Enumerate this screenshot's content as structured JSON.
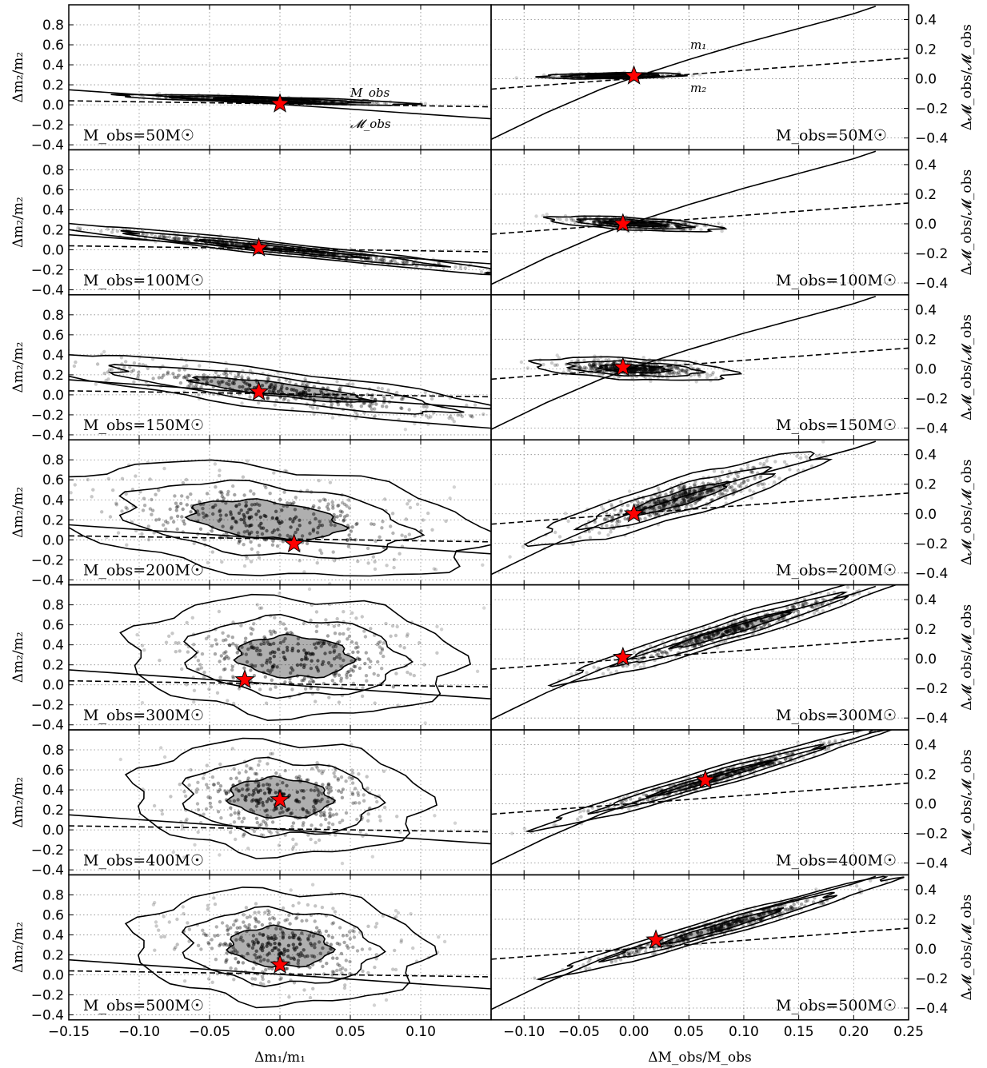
{
  "figure": {
    "left_xlabel": "Δm₁/m₁",
    "right_xlabel": "ΔM_obs/M_obs",
    "left_ylabel": "Δm₂/m₂",
    "right_ylabel": "Δ𝓜_obs/𝓜_obs"
  },
  "colors": {
    "star": "#ff0000",
    "lines": "#000000",
    "grid": "#888888",
    "density_dark": "#1a1a1a",
    "density_light": "#dddddd"
  },
  "annotations": {
    "left_top": [
      "M_obs",
      "𝓜_obs"
    ],
    "right_top": [
      "m₁",
      "m₂"
    ]
  },
  "chart_data": [
    {
      "type": "scatter",
      "side": "left",
      "panel_label": "M_obs=50M☉",
      "xlim": [
        -0.15,
        0.15
      ],
      "ylim": [
        -0.45,
        1.0
      ],
      "xticks": [
        -0.15,
        -0.1,
        -0.05,
        0.0,
        0.05,
        0.1
      ],
      "yticks": [
        -0.4,
        -0.2,
        0.0,
        0.2,
        0.4,
        0.6,
        0.8
      ],
      "true_value": {
        "x": 0.0,
        "y": 0.01
      },
      "cloud": {
        "center": [
          -0.01,
          0.05
        ],
        "sx": 0.04,
        "sy": 0.02,
        "corr": -0.8
      },
      "lines": [
        {
          "style": "solid",
          "x": [
            -0.15,
            0.15
          ],
          "y": [
            0.15,
            -0.14
          ]
        },
        {
          "style": "dashed",
          "x": [
            -0.15,
            0.15
          ],
          "y": [
            0.04,
            -0.02
          ]
        }
      ]
    },
    {
      "type": "scatter",
      "side": "right",
      "panel_label": "M_obs=50M☉",
      "xlim": [
        -0.13,
        0.25
      ],
      "ylim": [
        -0.48,
        0.5
      ],
      "xticks": [
        -0.1,
        -0.05,
        0.0,
        0.05,
        0.1,
        0.15,
        0.2,
        0.25
      ],
      "yticks": [
        -0.4,
        -0.2,
        0.0,
        0.2,
        0.4
      ],
      "true_value": {
        "x": 0.0,
        "y": 0.02
      },
      "cloud": {
        "center": [
          -0.02,
          0.02
        ],
        "sx": 0.025,
        "sy": 0.008,
        "corr": 0.3
      },
      "lines": [
        {
          "style": "solid",
          "x": [
            -0.13,
            -0.08,
            -0.03,
            0.0,
            0.05,
            0.1,
            0.15,
            0.2,
            0.22
          ],
          "y": [
            -0.41,
            -0.23,
            -0.07,
            0.01,
            0.13,
            0.24,
            0.34,
            0.44,
            0.49
          ]
        },
        {
          "style": "dashed",
          "x": [
            -0.13,
            0.25
          ],
          "y": [
            -0.07,
            0.14
          ]
        }
      ]
    },
    {
      "type": "scatter",
      "side": "left",
      "panel_label": "M_obs=100M☉",
      "xlim": [
        -0.15,
        0.15
      ],
      "ylim": [
        -0.45,
        1.0
      ],
      "xticks": [
        -0.15,
        -0.1,
        -0.05,
        0.0,
        0.05,
        0.1
      ],
      "yticks": [
        -0.4,
        -0.2,
        0.0,
        0.2,
        0.4,
        0.6,
        0.8
      ],
      "true_value": {
        "x": -0.015,
        "y": 0.02
      },
      "cloud": {
        "center": [
          0.0,
          0.01
        ],
        "sx": 0.065,
        "sy": 0.1,
        "corr": -0.97
      },
      "lines": [
        {
          "style": "solid",
          "x": [
            -0.15,
            0.15
          ],
          "y": [
            0.15,
            -0.14
          ]
        },
        {
          "style": "dashed",
          "x": [
            -0.15,
            0.15
          ],
          "y": [
            0.04,
            -0.02
          ]
        }
      ]
    },
    {
      "type": "scatter",
      "side": "right",
      "panel_label": "M_obs=100M☉",
      "xlim": [
        -0.13,
        0.25
      ],
      "ylim": [
        -0.48,
        0.5
      ],
      "xticks": [
        -0.1,
        -0.05,
        0.0,
        0.05,
        0.1,
        0.15,
        0.2,
        0.25
      ],
      "yticks": [
        -0.4,
        -0.2,
        0.0,
        0.2,
        0.4
      ],
      "true_value": {
        "x": -0.01,
        "y": 0.0
      },
      "cloud": {
        "center": [
          0.0,
          0.0
        ],
        "sx": 0.03,
        "sy": 0.02,
        "corr": -0.6
      },
      "lines": [
        {
          "style": "solid",
          "x": [
            -0.13,
            -0.08,
            -0.03,
            0.0,
            0.05,
            0.1,
            0.15,
            0.2,
            0.22
          ],
          "y": [
            -0.41,
            -0.23,
            -0.07,
            0.01,
            0.13,
            0.24,
            0.34,
            0.44,
            0.49
          ]
        },
        {
          "style": "dashed",
          "x": [
            -0.13,
            0.25
          ],
          "y": [
            -0.07,
            0.14
          ]
        }
      ]
    },
    {
      "type": "scatter",
      "side": "left",
      "panel_label": "M_obs=150M☉",
      "xlim": [
        -0.15,
        0.15
      ],
      "ylim": [
        -0.45,
        1.0
      ],
      "xticks": [
        -0.15,
        -0.1,
        -0.05,
        0.0,
        0.05,
        0.1
      ],
      "yticks": [
        -0.4,
        -0.2,
        0.0,
        0.2,
        0.4,
        0.6,
        0.8
      ],
      "true_value": {
        "x": -0.015,
        "y": 0.03
      },
      "cloud": {
        "center": [
          0.0,
          0.05
        ],
        "sx": 0.07,
        "sy": 0.14,
        "corr": -0.85
      },
      "lines": [
        {
          "style": "solid",
          "x": [
            -0.15,
            0.15
          ],
          "y": [
            0.15,
            -0.14
          ]
        },
        {
          "style": "dashed",
          "x": [
            -0.15,
            0.15
          ],
          "y": [
            0.04,
            -0.02
          ]
        }
      ]
    },
    {
      "type": "scatter",
      "side": "right",
      "panel_label": "M_obs=150M☉",
      "xlim": [
        -0.13,
        0.25
      ],
      "ylim": [
        -0.48,
        0.5
      ],
      "xticks": [
        -0.1,
        -0.05,
        0.0,
        0.05,
        0.1,
        0.15,
        0.2,
        0.25
      ],
      "yticks": [
        -0.4,
        -0.2,
        0.0,
        0.2,
        0.4
      ],
      "true_value": {
        "x": -0.01,
        "y": 0.01
      },
      "cloud": {
        "center": [
          0.0,
          0.0
        ],
        "sx": 0.035,
        "sy": 0.03,
        "corr": -0.4
      },
      "lines": [
        {
          "style": "solid",
          "x": [
            -0.13,
            -0.08,
            -0.03,
            0.0,
            0.05,
            0.1,
            0.15,
            0.2,
            0.22
          ],
          "y": [
            -0.41,
            -0.23,
            -0.07,
            0.01,
            0.13,
            0.24,
            0.34,
            0.44,
            0.49
          ]
        },
        {
          "style": "dashed",
          "x": [
            -0.13,
            0.25
          ],
          "y": [
            -0.07,
            0.14
          ]
        }
      ]
    },
    {
      "type": "scatter",
      "side": "left",
      "panel_label": "M_obs=200M☉",
      "xlim": [
        -0.15,
        0.15
      ],
      "ylim": [
        -0.45,
        1.0
      ],
      "xticks": [
        -0.15,
        -0.1,
        -0.05,
        0.0,
        0.05,
        0.1
      ],
      "yticks": [
        -0.4,
        -0.2,
        0.0,
        0.2,
        0.4,
        0.6,
        0.8
      ],
      "true_value": {
        "x": 0.01,
        "y": -0.04
      },
      "cloud": {
        "center": [
          -0.01,
          0.2
        ],
        "sx": 0.06,
        "sy": 0.22,
        "corr": -0.35
      },
      "lines": [
        {
          "style": "solid",
          "x": [
            -0.15,
            0.15
          ],
          "y": [
            0.15,
            -0.14
          ]
        },
        {
          "style": "dashed",
          "x": [
            -0.15,
            0.15
          ],
          "y": [
            0.04,
            -0.02
          ]
        }
      ]
    },
    {
      "type": "scatter",
      "side": "right",
      "panel_label": "M_obs=200M☉",
      "xlim": [
        -0.13,
        0.25
      ],
      "ylim": [
        -0.48,
        0.5
      ],
      "xticks": [
        -0.1,
        -0.05,
        0.0,
        0.05,
        0.1,
        0.15,
        0.2,
        0.25
      ],
      "yticks": [
        -0.4,
        -0.2,
        0.0,
        0.2,
        0.4
      ],
      "true_value": {
        "x": 0.0,
        "y": 0.0
      },
      "cloud": {
        "center": [
          0.04,
          0.1
        ],
        "sx": 0.05,
        "sy": 0.12,
        "corr": 0.9
      },
      "lines": [
        {
          "style": "solid",
          "x": [
            -0.13,
            -0.08,
            -0.03,
            0.0,
            0.05,
            0.1,
            0.15,
            0.2,
            0.22
          ],
          "y": [
            -0.41,
            -0.23,
            -0.07,
            0.01,
            0.13,
            0.24,
            0.34,
            0.44,
            0.49
          ]
        },
        {
          "style": "dashed",
          "x": [
            -0.13,
            0.25
          ],
          "y": [
            -0.07,
            0.14
          ]
        }
      ]
    },
    {
      "type": "scatter",
      "side": "left",
      "panel_label": "M_obs=300M☉",
      "xlim": [
        -0.15,
        0.15
      ],
      "ylim": [
        -0.45,
        1.0
      ],
      "xticks": [
        -0.15,
        -0.1,
        -0.05,
        0.0,
        0.05,
        0.1
      ],
      "yticks": [
        -0.4,
        -0.2,
        0.0,
        0.2,
        0.4,
        0.6,
        0.8
      ],
      "true_value": {
        "x": -0.025,
        "y": 0.05
      },
      "cloud": {
        "center": [
          0.01,
          0.28
        ],
        "sx": 0.045,
        "sy": 0.23,
        "corr": -0.1
      },
      "lines": [
        {
          "style": "solid",
          "x": [
            -0.15,
            0.15
          ],
          "y": [
            0.15,
            -0.14
          ]
        },
        {
          "style": "dashed",
          "x": [
            -0.15,
            0.15
          ],
          "y": [
            0.04,
            -0.02
          ]
        }
      ]
    },
    {
      "type": "scatter",
      "side": "right",
      "panel_label": "M_obs=300M☉",
      "xlim": [
        -0.13,
        0.25
      ],
      "ylim": [
        -0.48,
        0.5
      ],
      "xticks": [
        -0.1,
        -0.05,
        0.0,
        0.05,
        0.1,
        0.15,
        0.2,
        0.25
      ],
      "yticks": [
        -0.4,
        -0.2,
        0.0,
        0.2,
        0.4
      ],
      "true_value": {
        "x": -0.01,
        "y": 0.01
      },
      "cloud": {
        "center": [
          0.09,
          0.2
        ],
        "sx": 0.06,
        "sy": 0.14,
        "corr": 0.97
      },
      "lines": [
        {
          "style": "solid",
          "x": [
            -0.13,
            -0.08,
            -0.03,
            0.0,
            0.05,
            0.1,
            0.15,
            0.2,
            0.22
          ],
          "y": [
            -0.41,
            -0.23,
            -0.07,
            0.01,
            0.13,
            0.24,
            0.34,
            0.44,
            0.49
          ]
        },
        {
          "style": "dashed",
          "x": [
            -0.13,
            0.25
          ],
          "y": [
            -0.07,
            0.14
          ]
        }
      ]
    },
    {
      "type": "scatter",
      "side": "left",
      "panel_label": "M_obs=400M☉",
      "xlim": [
        -0.15,
        0.15
      ],
      "ylim": [
        -0.45,
        1.0
      ],
      "xticks": [
        -0.15,
        -0.1,
        -0.05,
        0.0,
        0.05,
        0.1
      ],
      "yticks": [
        -0.4,
        -0.2,
        0.0,
        0.2,
        0.4,
        0.6,
        0.8
      ],
      "true_value": {
        "x": 0.0,
        "y": 0.3
      },
      "cloud": {
        "center": [
          0.0,
          0.32
        ],
        "sx": 0.04,
        "sy": 0.22,
        "corr": -0.1
      },
      "lines": [
        {
          "style": "solid",
          "x": [
            -0.15,
            0.15
          ],
          "y": [
            0.15,
            -0.14
          ]
        },
        {
          "style": "dashed",
          "x": [
            -0.15,
            0.15
          ],
          "y": [
            0.04,
            -0.02
          ]
        }
      ]
    },
    {
      "type": "scatter",
      "side": "right",
      "panel_label": "M_obs=400M☉",
      "xlim": [
        -0.13,
        0.25
      ],
      "ylim": [
        -0.48,
        0.5
      ],
      "xticks": [
        -0.1,
        -0.05,
        0.0,
        0.05,
        0.1,
        0.15,
        0.2,
        0.25
      ],
      "yticks": [
        -0.4,
        -0.2,
        0.0,
        0.2,
        0.4
      ],
      "true_value": {
        "x": 0.065,
        "y": 0.16
      },
      "cloud": {
        "center": [
          0.07,
          0.17
        ],
        "sx": 0.06,
        "sy": 0.13,
        "corr": 0.98
      },
      "lines": [
        {
          "style": "solid",
          "x": [
            -0.13,
            -0.08,
            -0.03,
            0.0,
            0.05,
            0.1,
            0.15,
            0.2,
            0.22
          ],
          "y": [
            -0.41,
            -0.23,
            -0.07,
            0.01,
            0.13,
            0.24,
            0.34,
            0.44,
            0.49
          ]
        },
        {
          "style": "dashed",
          "x": [
            -0.13,
            0.25
          ],
          "y": [
            -0.07,
            0.14
          ]
        }
      ]
    },
    {
      "type": "scatter",
      "side": "left",
      "panel_label": "M_obs=500M☉",
      "xlim": [
        -0.15,
        0.15
      ],
      "ylim": [
        -0.45,
        1.0
      ],
      "xticks": [
        -0.15,
        -0.1,
        -0.05,
        0.0,
        0.05,
        0.1
      ],
      "yticks": [
        -0.4,
        -0.2,
        0.0,
        0.2,
        0.4,
        0.6,
        0.8
      ],
      "true_value": {
        "x": 0.0,
        "y": 0.1
      },
      "cloud": {
        "center": [
          0.0,
          0.28
        ],
        "sx": 0.04,
        "sy": 0.22,
        "corr": -0.1
      },
      "lines": [
        {
          "style": "solid",
          "x": [
            -0.15,
            0.15
          ],
          "y": [
            0.15,
            -0.14
          ]
        },
        {
          "style": "dashed",
          "x": [
            -0.15,
            0.15
          ],
          "y": [
            0.04,
            -0.02
          ]
        }
      ]
    },
    {
      "type": "scatter",
      "side": "right",
      "panel_label": "M_obs=500M☉",
      "xlim": [
        -0.13,
        0.25
      ],
      "ylim": [
        -0.48,
        0.5
      ],
      "xticks": [
        -0.1,
        -0.05,
        0.0,
        0.05,
        0.1,
        0.15,
        0.2,
        0.25
      ],
      "yticks": [
        -0.4,
        -0.2,
        0.0,
        0.2,
        0.4
      ],
      "true_value": {
        "x": 0.02,
        "y": 0.06
      },
      "cloud": {
        "center": [
          0.08,
          0.15
        ],
        "sx": 0.06,
        "sy": 0.13,
        "corr": 0.98
      },
      "lines": [
        {
          "style": "solid",
          "x": [
            -0.13,
            -0.08,
            -0.03,
            0.0,
            0.05,
            0.1,
            0.15,
            0.2,
            0.22
          ],
          "y": [
            -0.41,
            -0.23,
            -0.07,
            0.01,
            0.13,
            0.24,
            0.34,
            0.44,
            0.49
          ]
        },
        {
          "style": "dashed",
          "x": [
            -0.13,
            0.25
          ],
          "y": [
            -0.07,
            0.14
          ]
        }
      ]
    }
  ]
}
